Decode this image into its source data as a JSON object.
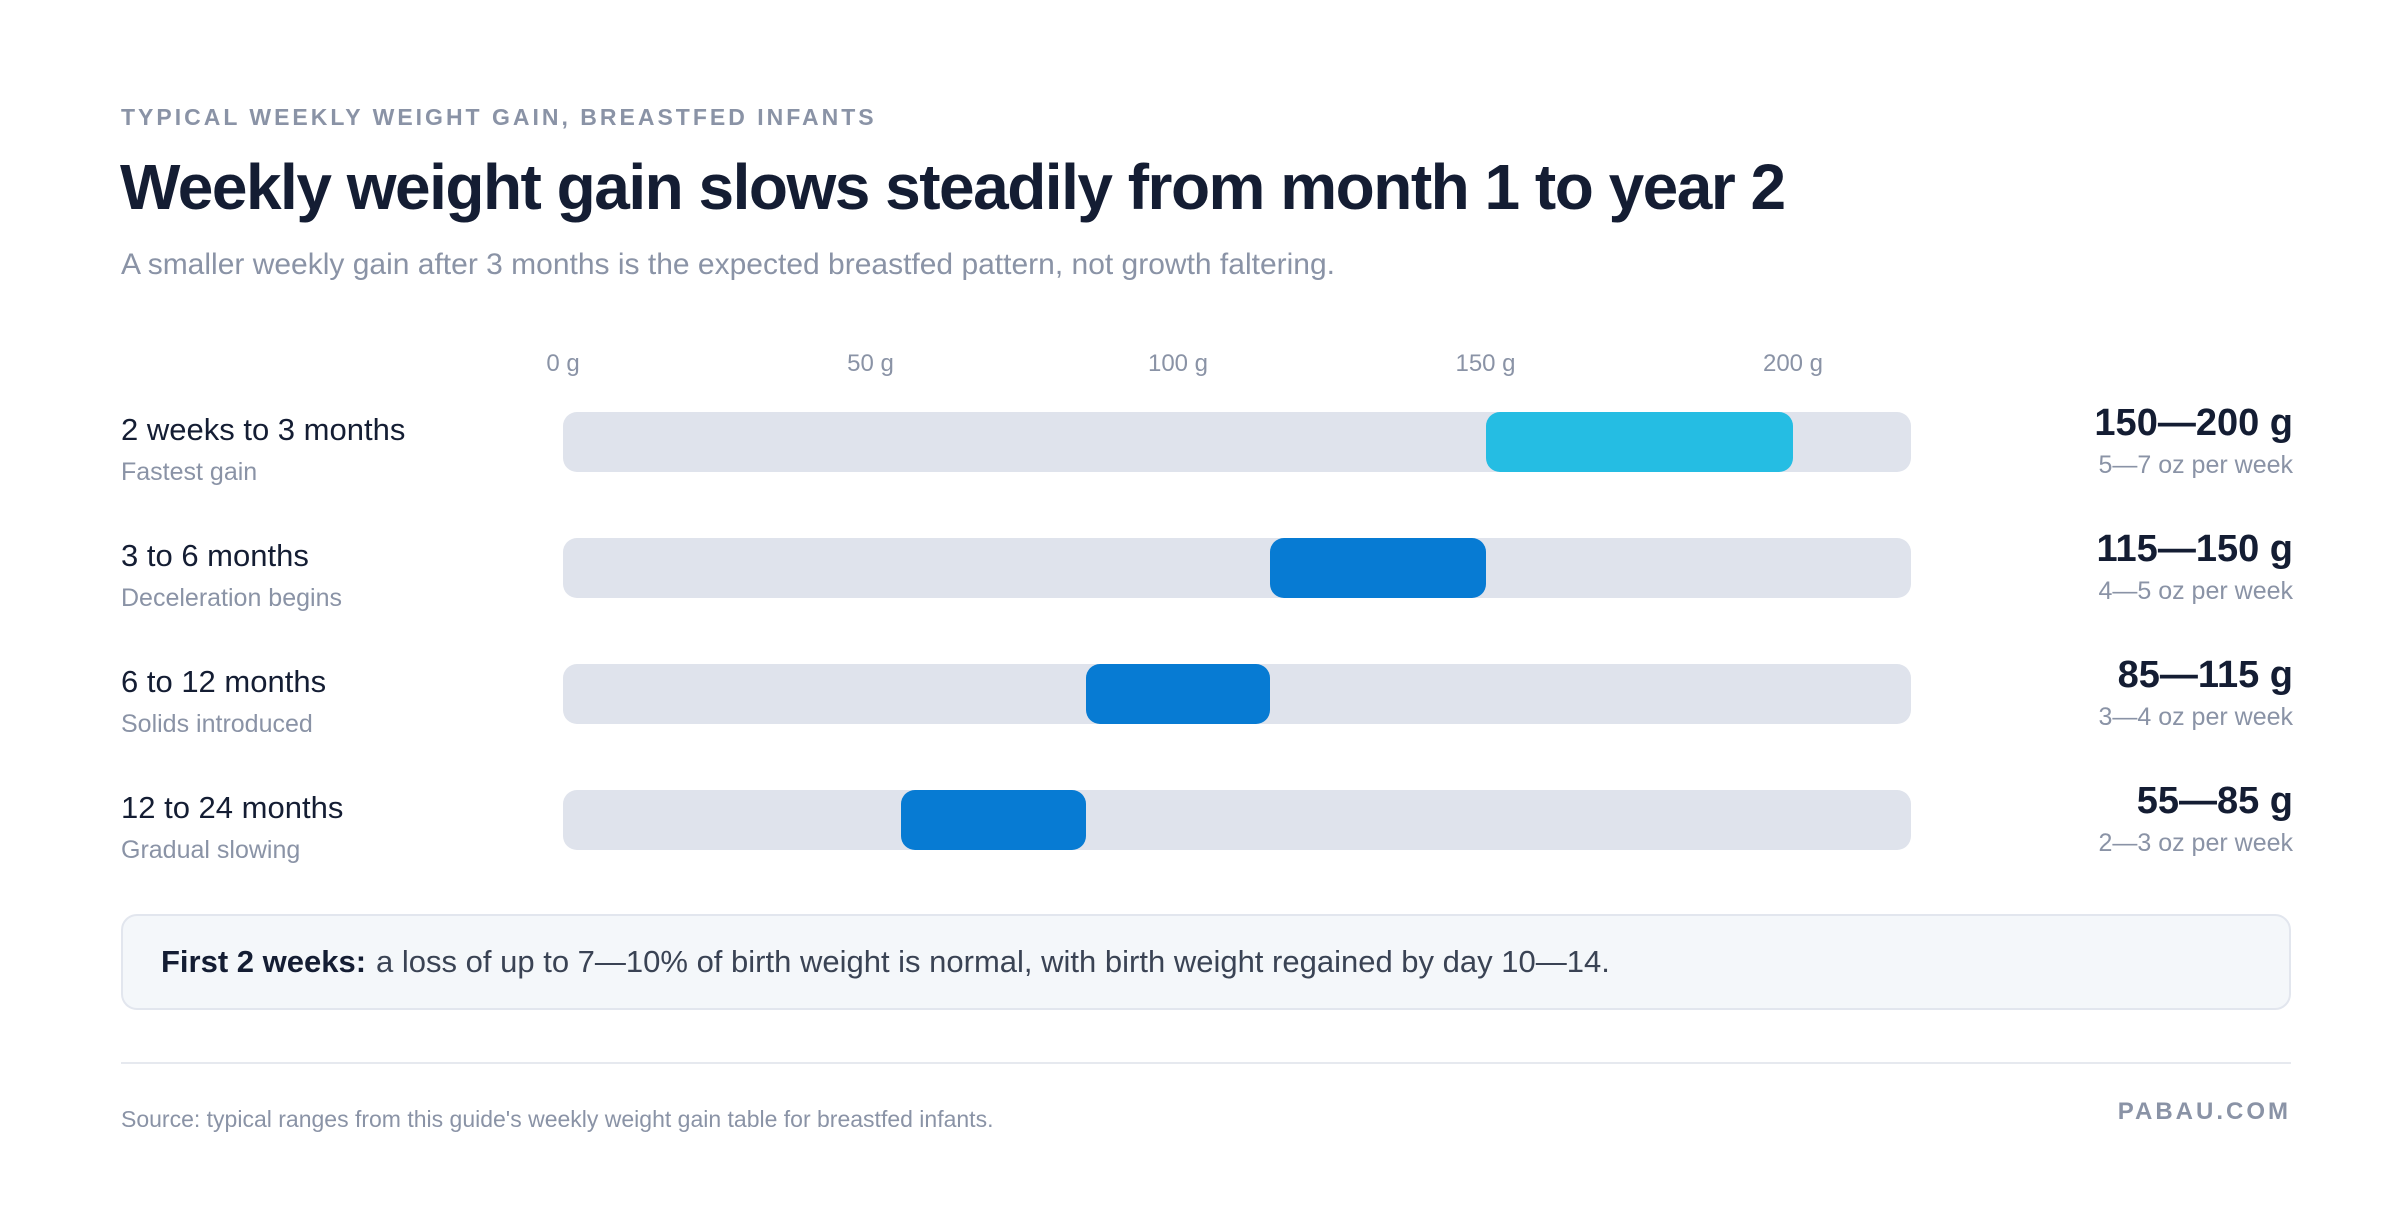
{
  "header": {
    "eyebrow": "TYPICAL WEEKLY WEIGHT GAIN, BREASTFED INFANTS",
    "title": "Weekly weight gain slows steadily from month 1 to year 2",
    "subtitle": "A smaller weekly gain after 3 months is the expected breastfed pattern, not growth faltering."
  },
  "chart_data": {
    "type": "bar",
    "subtype": "floating-range",
    "xlim": [
      0,
      220
    ],
    "ticks": [
      "0 g",
      "50 g",
      "100 g",
      "150 g",
      "200 g"
    ],
    "tick_values": [
      0,
      50,
      100,
      150,
      200
    ],
    "grid": false,
    "categories": [
      "2 weeks to 3 months",
      "3 to 6 months",
      "6 to 12 months",
      "12 to 24 months"
    ],
    "rows": [
      {
        "period": "2 weeks to 3 months",
        "note": "Fastest gain",
        "low": 150,
        "high": 200,
        "range_label": "150—200 g",
        "oz_label": "5—7 oz per week",
        "color": "#25bde3"
      },
      {
        "period": "3 to 6 months",
        "note": "Deceleration begins",
        "low": 115,
        "high": 150,
        "range_label": "115—150 g",
        "oz_label": "4—5 oz per week",
        "color": "#077bd3"
      },
      {
        "period": "6 to 12 months",
        "note": "Solids introduced",
        "low": 85,
        "high": 115,
        "range_label": "85—115 g",
        "oz_label": "3—4 oz per week",
        "color": "#077bd3"
      },
      {
        "period": "12 to 24 months",
        "note": "Gradual slowing",
        "low": 55,
        "high": 85,
        "range_label": "55—85 g",
        "oz_label": "2—3 oz per week",
        "color": "#077bd3"
      }
    ]
  },
  "callout": {
    "lead": "First 2 weeks:",
    "text": "a loss of up to 7—10% of birth weight is normal, with birth weight regained by day 10—14."
  },
  "footer": {
    "source": "Source: typical ranges from this guide's weekly weight gain table for breastfed infants.",
    "brand": "PABAU.COM"
  },
  "colors": {
    "track": "#dfe3ec",
    "highlight": "#25bde3",
    "primary": "#077bd3",
    "text_dark": "#141d33",
    "text_muted": "#8a93a6"
  }
}
